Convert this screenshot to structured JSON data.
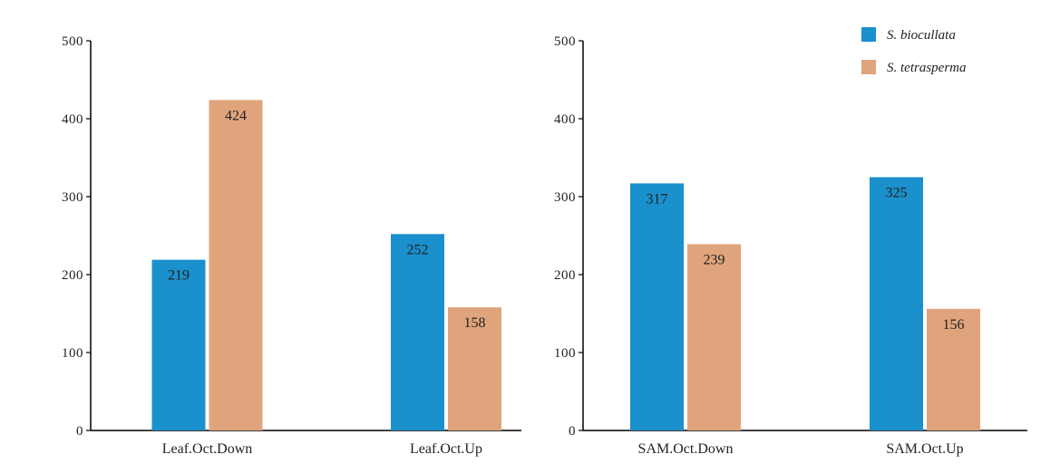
{
  "chart_data": [
    {
      "type": "bar",
      "categories": [
        "Leaf.Oct.Down",
        "Leaf.Oct.Up"
      ],
      "series": [
        {
          "name": "S. biocullata",
          "values": [
            219,
            252
          ]
        },
        {
          "name": "S. tetrasperma",
          "values": [
            424,
            158
          ]
        }
      ],
      "title": "",
      "xlabel": "",
      "ylabel": "",
      "ylim": [
        0,
        500
      ],
      "yticks": [
        0,
        100,
        200,
        300,
        400,
        500
      ],
      "grid": false
    },
    {
      "type": "bar",
      "categories": [
        "SAM.Oct.Down",
        "SAM.Oct.Up"
      ],
      "series": [
        {
          "name": "S. biocullata",
          "values": [
            317,
            325
          ]
        },
        {
          "name": "S. tetrasperma",
          "values": [
            239,
            156
          ]
        }
      ],
      "title": "",
      "xlabel": "",
      "ylabel": "",
      "ylim": [
        0,
        500
      ],
      "yticks": [
        0,
        100,
        200,
        300,
        400,
        500
      ],
      "grid": false
    }
  ],
  "legend": {
    "placement": "top-right",
    "items": [
      {
        "label": "S. biocullata",
        "color": "#1a90cc"
      },
      {
        "label": "S. tetrasperma",
        "color": "#e0a47c"
      }
    ]
  },
  "colors": {
    "S. biocullata": "#1a90cc",
    "S. tetrasperma": "#e0a47c"
  }
}
